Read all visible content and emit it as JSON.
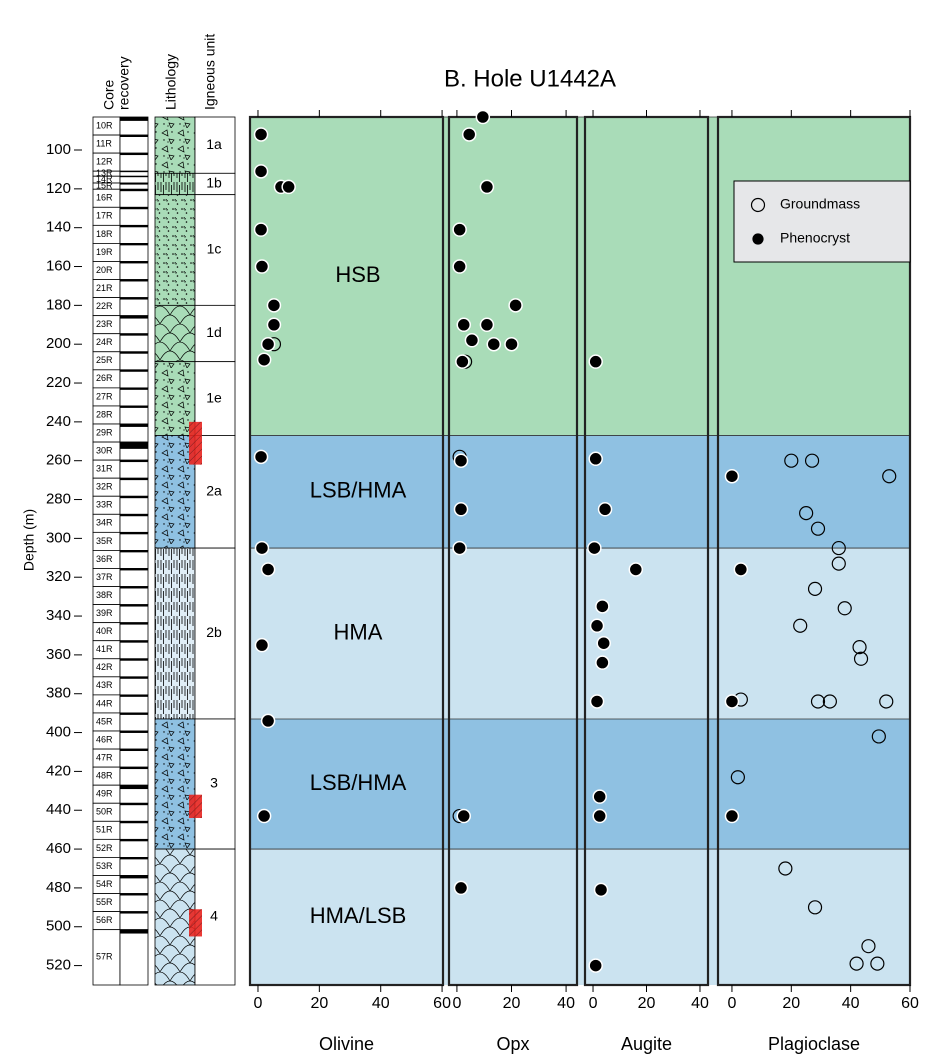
{
  "chart_data": {
    "type": "scatter",
    "title": "B. Hole U1442A",
    "ylabel": "Depth (m)",
    "ylim": [
      83,
      530
    ],
    "yticks": [
      100,
      120,
      140,
      160,
      180,
      200,
      220,
      240,
      260,
      280,
      300,
      320,
      340,
      360,
      380,
      400,
      420,
      440,
      460,
      480,
      500,
      520
    ],
    "headers": {
      "core": [
        "Core",
        "recovery"
      ],
      "lithology": "Lithology",
      "unit": "Igneous unit"
    },
    "zones": [
      {
        "label": "HSB",
        "top": 83,
        "bottom": 247,
        "color": "#a9dcb8"
      },
      {
        "label": "LSB/HMA",
        "top": 247,
        "bottom": 305,
        "color": "#8fc1e2"
      },
      {
        "label": "HMA",
        "top": 305,
        "bottom": 393,
        "color": "#cbe3f0"
      },
      {
        "label": "LSB/HMA",
        "top": 393,
        "bottom": 460,
        "color": "#8fc1e2"
      },
      {
        "label": "HMA/LSB",
        "top": 460,
        "bottom": 530,
        "color": "#cbe3f0"
      }
    ],
    "legend": {
      "loc": "upper right",
      "entries": [
        {
          "name": "Groundmass",
          "marker": "open"
        },
        {
          "name": "Phenocryst",
          "marker": "filled"
        }
      ]
    },
    "panels": [
      {
        "xlabel": "Olivine",
        "xlim": [
          -2.6,
          60.3
        ],
        "xticks": [
          0,
          20,
          40,
          60
        ],
        "series": [
          {
            "marker": "open",
            "x": [
              5.2
            ],
            "y": [
              200
            ]
          },
          {
            "marker": "filled",
            "x": [
              1,
              1,
              7.5,
              10,
              1,
              1.3,
              5.2,
              5.2,
              3.3,
              2,
              1,
              1.3,
              3.3,
              1.3,
              3.3,
              2
            ],
            "y": [
              92,
              111,
              119,
              119,
              141,
              160,
              180,
              190,
              200,
              208,
              258,
              305,
              316,
              355,
              394,
              443
            ]
          }
        ]
      },
      {
        "xlabel": "Opx",
        "xlim": [
          -2.9,
          44
        ],
        "xticks": [
          0,
          20,
          40
        ],
        "series": [
          {
            "marker": "open",
            "x": [
              3,
              1,
              1
            ],
            "y": [
              209,
              258,
              443
            ]
          },
          {
            "marker": "filled",
            "x": [
              9.5,
              4.5,
              11,
              1,
              1,
              21.5,
              2.5,
              11,
              5.5,
              13.5,
              20,
              2,
              1.5,
              1.5,
              1,
              2.5,
              1.5
            ],
            "y": [
              83,
              92,
              119,
              141,
              160,
              180,
              190,
              190,
              198,
              200,
              200,
              209,
              260,
              285,
              305,
              443,
              480
            ]
          }
        ]
      },
      {
        "xlabel": "Augite",
        "xlim": [
          -3,
          43
        ],
        "xticks": [
          0,
          20,
          40
        ],
        "series": [
          {
            "marker": "filled",
            "x": [
              1,
              1,
              4.5,
              0.5,
              16,
              3.5,
              1.5,
              4,
              3.5,
              1.5,
              2.5,
              2.5,
              3,
              1
            ],
            "y": [
              209,
              259,
              285,
              305,
              316,
              335,
              345,
              354,
              364,
              384,
              433,
              443,
              481,
              520
            ]
          }
        ]
      },
      {
        "xlabel": "Plagioclase",
        "xlim": [
          -4.7,
          60
        ],
        "xticks": [
          0,
          20,
          40,
          60
        ],
        "series": [
          {
            "marker": "open",
            "x": [
              20,
              27,
              53,
              25,
              29,
              36,
              36,
              28,
              38,
              23,
              43,
              43.5,
              3,
              29,
              33,
              52,
              49.5,
              2,
              18,
              28,
              46,
              42,
              49
            ],
            "y": [
              260,
              260,
              268,
              287,
              295,
              305,
              313,
              326,
              336,
              345,
              356,
              362,
              383,
              384,
              384,
              384,
              402,
              423,
              470,
              490,
              510,
              519,
              519
            ]
          },
          {
            "marker": "filled",
            "x": [
              0,
              3,
              0,
              0
            ],
            "y": [
              268,
              316,
              384,
              443
            ]
          }
        ]
      }
    ],
    "units": [
      {
        "label": "1a",
        "top": 83,
        "bottom": 112,
        "color": "#a9dcb8",
        "pattern": "breccia"
      },
      {
        "label": "1b",
        "top": 112,
        "bottom": 123,
        "color": "#a9dcb8",
        "pattern": "lines"
      },
      {
        "label": "1c",
        "top": 123,
        "bottom": 180,
        "color": "#a9dcb8",
        "pattern": "dots"
      },
      {
        "label": "1d",
        "top": 180,
        "bottom": 209,
        "color": "#a9dcb8",
        "pattern": "pillow"
      },
      {
        "label": "1e",
        "top": 209,
        "bottom": 247,
        "color": "#a9dcb8",
        "pattern": "breccia"
      },
      {
        "label": "2a",
        "top": 247,
        "bottom": 305,
        "color": "#8fc1e2",
        "pattern": "breccia"
      },
      {
        "label": "2b",
        "top": 305,
        "bottom": 393,
        "color": "#dfedf6",
        "pattern": "lines"
      },
      {
        "label": "3",
        "top": 393,
        "bottom": 460,
        "color": "#8fc1e2",
        "pattern": "breccia"
      },
      {
        "label": "4",
        "top": 460,
        "bottom": 530,
        "color": "#cbe3f0",
        "pattern": "pillow"
      }
    ],
    "highlights": [
      [
        240,
        262
      ],
      [
        432,
        444
      ],
      [
        491,
        505
      ]
    ],
    "cores": [
      {
        "label": "10R",
        "top": 83,
        "recovery": 2
      },
      {
        "label": "11R",
        "top": 92.3,
        "recovery": 1
      },
      {
        "label": "12R",
        "top": 101.6,
        "recovery": 1
      },
      {
        "label": "13R",
        "top": 110.9,
        "recovery": 0.5
      },
      {
        "label": "14R",
        "top": 113.5,
        "recovery": 0.5
      },
      {
        "label": "15R",
        "top": 117,
        "recovery": 0.8
      },
      {
        "label": "16R",
        "top": 120.2,
        "recovery": 1
      },
      {
        "label": "17R",
        "top": 129.5,
        "recovery": 1
      },
      {
        "label": "18R",
        "top": 138.8,
        "recovery": 1
      },
      {
        "label": "19R",
        "top": 148.1,
        "recovery": 1
      },
      {
        "label": "20R",
        "top": 157.4,
        "recovery": 1
      },
      {
        "label": "21R",
        "top": 166.7,
        "recovery": 1
      },
      {
        "label": "22R",
        "top": 176,
        "recovery": 1
      },
      {
        "label": "23R",
        "top": 185.3,
        "recovery": 1.5
      },
      {
        "label": "24R",
        "top": 194.6,
        "recovery": 1
      },
      {
        "label": "25R",
        "top": 203.9,
        "recovery": 1
      },
      {
        "label": "26R",
        "top": 213.2,
        "recovery": 1
      },
      {
        "label": "27R",
        "top": 222.5,
        "recovery": 1
      },
      {
        "label": "28R",
        "top": 231.8,
        "recovery": 1
      },
      {
        "label": "29R",
        "top": 241.1,
        "recovery": 1.5
      },
      {
        "label": "30R",
        "top": 250.4,
        "recovery": 3.5
      },
      {
        "label": "31R",
        "top": 259.7,
        "recovery": 1
      },
      {
        "label": "32R",
        "top": 269,
        "recovery": 1
      },
      {
        "label": "33R",
        "top": 278.3,
        "recovery": 1
      },
      {
        "label": "34R",
        "top": 287.6,
        "recovery": 1
      },
      {
        "label": "35R",
        "top": 296.9,
        "recovery": 1
      },
      {
        "label": "36R",
        "top": 306.2,
        "recovery": 1
      },
      {
        "label": "37R",
        "top": 315.5,
        "recovery": 1
      },
      {
        "label": "38R",
        "top": 324.8,
        "recovery": 1
      },
      {
        "label": "39R",
        "top": 334.1,
        "recovery": 1
      },
      {
        "label": "40R",
        "top": 343.4,
        "recovery": 1
      },
      {
        "label": "41R",
        "top": 352.7,
        "recovery": 1
      },
      {
        "label": "42R",
        "top": 362,
        "recovery": 1
      },
      {
        "label": "43R",
        "top": 371.3,
        "recovery": 1
      },
      {
        "label": "44R",
        "top": 380.6,
        "recovery": 1
      },
      {
        "label": "45R",
        "top": 389.9,
        "recovery": 1
      },
      {
        "label": "46R",
        "top": 399.2,
        "recovery": 1
      },
      {
        "label": "47R",
        "top": 408.5,
        "recovery": 1
      },
      {
        "label": "48R",
        "top": 417.8,
        "recovery": 1
      },
      {
        "label": "49R",
        "top": 427.1,
        "recovery": 2
      },
      {
        "label": "50R",
        "top": 436.4,
        "recovery": 1
      },
      {
        "label": "51R",
        "top": 445.7,
        "recovery": 1
      },
      {
        "label": "52R",
        "top": 455,
        "recovery": 1
      },
      {
        "label": "53R",
        "top": 464.3,
        "recovery": 1
      },
      {
        "label": "54R",
        "top": 473.6,
        "recovery": 1.5
      },
      {
        "label": "55R",
        "top": 482.9,
        "recovery": 1
      },
      {
        "label": "56R",
        "top": 492.2,
        "recovery": 1
      },
      {
        "label": "57R",
        "top": 501.5,
        "recovery": 2
      }
    ]
  }
}
